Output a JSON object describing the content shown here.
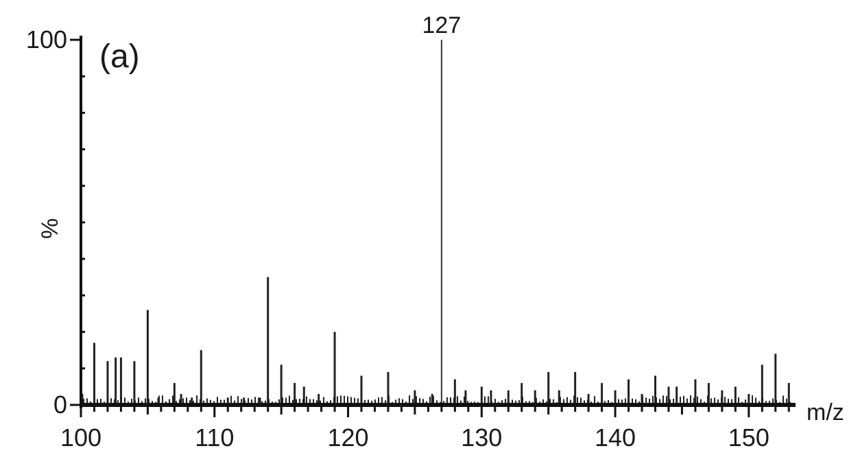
{
  "chart_data": {
    "type": "bar",
    "panel_label": "(a)",
    "xlabel": "m/z",
    "ylabel": "%",
    "xlim": [
      100,
      153.5
    ],
    "ylim": [
      0,
      100
    ],
    "x_ticks": [
      100,
      110,
      120,
      130,
      140,
      150
    ],
    "y_ticks": [
      0,
      100
    ],
    "peak_annotation": "127",
    "series": [
      {
        "x": [
          100.1,
          101,
          102,
          102.6,
          103,
          104,
          105,
          105.8,
          107,
          107.5,
          108.3,
          109,
          111,
          112.2,
          113.4,
          114,
          115,
          116,
          116.7,
          117.8,
          119,
          121,
          123,
          125,
          126.3,
          127,
          128,
          128.8,
          130,
          130.7,
          132,
          133,
          134,
          135,
          135.8,
          137,
          138,
          139,
          140,
          141,
          142,
          143,
          144,
          144.6,
          146,
          147,
          148,
          149,
          150,
          151,
          152,
          153
        ],
        "values": [
          3,
          17,
          12,
          13,
          13,
          12,
          26,
          2,
          6,
          3,
          2,
          15,
          2,
          2,
          2,
          35,
          11,
          6,
          5,
          3,
          20,
          8,
          9,
          4,
          3,
          100,
          7,
          4,
          5,
          4,
          4,
          6,
          4,
          9,
          4,
          9,
          3,
          6,
          4,
          7,
          3,
          8,
          5,
          5,
          7,
          6,
          4,
          5,
          3,
          11,
          14,
          6
        ]
      }
    ]
  }
}
